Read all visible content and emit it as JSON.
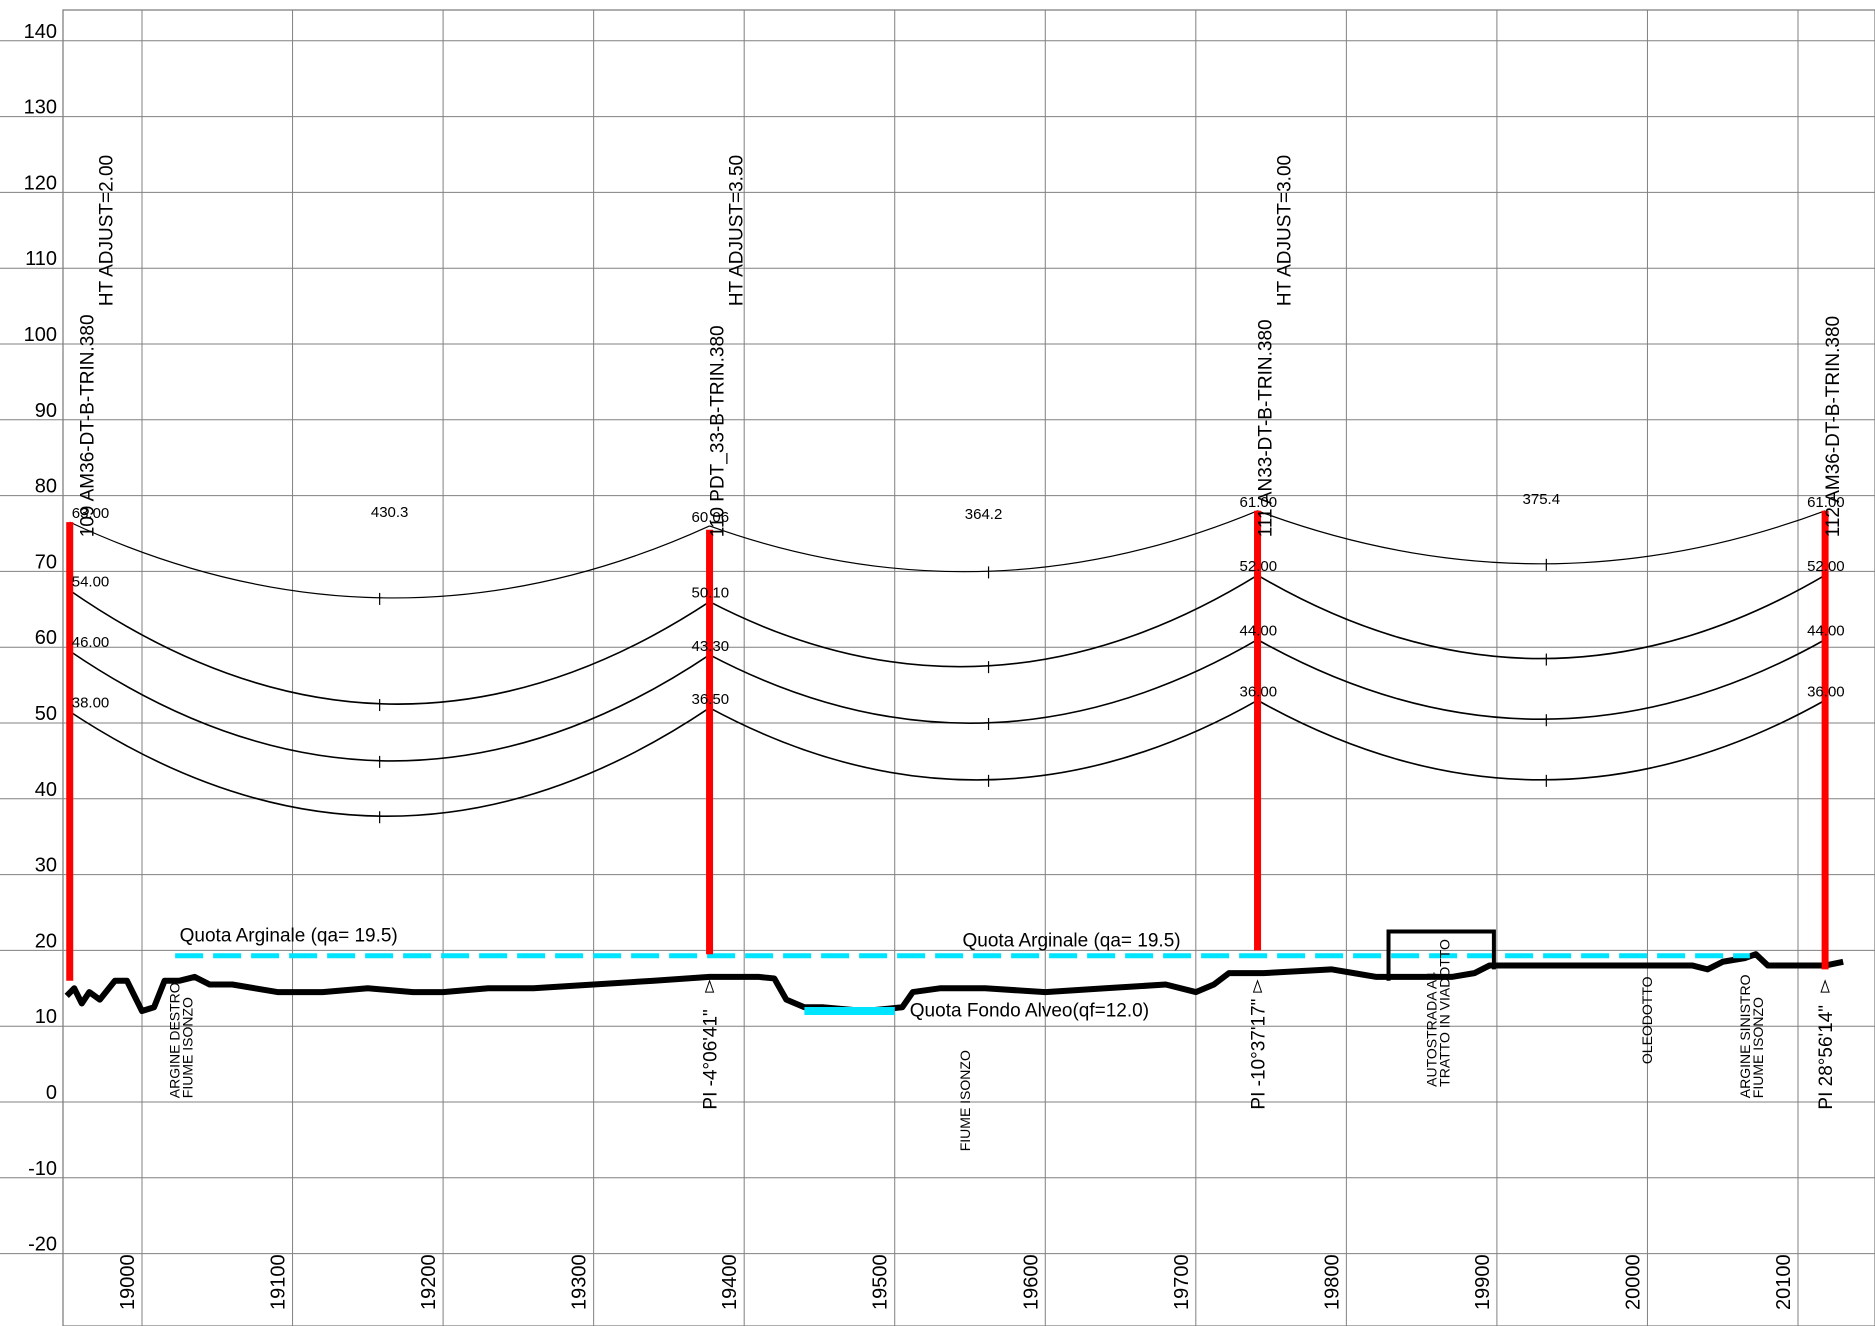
{
  "chart_data": {
    "type": "line",
    "x_ticks": [
      "19000",
      "19100",
      "19200",
      "19300",
      "19400",
      "19500",
      "19600",
      "19700",
      "19800",
      "19900",
      "20000",
      "20100"
    ],
    "y_ticks": [
      "140",
      "130",
      "120",
      "110",
      "100",
      "90",
      "80",
      "70",
      "60",
      "50",
      "40",
      "30",
      "20",
      "10",
      "0",
      "-10",
      "-20"
    ],
    "xlim": [
      18950,
      20130
    ],
    "ylim": [
      -25,
      144
    ],
    "grid": true,
    "towers": [
      {
        "label": "109 AM36-DT-B-TRIN.380",
        "adjust": "HT ADJUST=2.00",
        "x": 18952,
        "top": 76.5,
        "bottom": 16,
        "attach": [
          "63.00",
          "54.00",
          "46.00",
          "38.00"
        ],
        "pi": ""
      },
      {
        "label": "110 PDT_33-B-TRIN.380",
        "adjust": "HT ADJUST=3.50",
        "x": 19377,
        "top": 75.5,
        "bottom": 19.5,
        "attach": [
          "60.06",
          "50.10",
          "43.30",
          "36.50"
        ],
        "pi": "PI -4°06'41\""
      },
      {
        "label": "111 AN33-DT-B-TRIN.380",
        "adjust": "HT ADJUST=3.00",
        "x": 19741,
        "top": 78,
        "bottom": 20,
        "attach": [
          "61.00",
          "52.00",
          "44.00",
          "36.00"
        ],
        "pi": "PI -10°37'17\""
      },
      {
        "label": "112 AM36-DT-B-TRIN.380",
        "adjust": "",
        "x": 20118,
        "top": 78,
        "bottom": 17.5,
        "attach": [
          "61.00",
          "52.00",
          "44.00",
          "36.00"
        ],
        "pi": "PI 28°56'14\""
      }
    ],
    "spans": [
      {
        "length": "430.3",
        "wires": [
          [
            76.5,
            66.5,
            76.0
          ],
          [
            67.5,
            52.5,
            66.0
          ],
          [
            59.5,
            45.0,
            59.0
          ],
          [
            51.5,
            37.7,
            52.0
          ]
        ]
      },
      {
        "length": "364.2",
        "wires": [
          [
            76.0,
            70.0,
            78.0
          ],
          [
            66.0,
            57.5,
            69.5
          ],
          [
            59.0,
            50.0,
            61.0
          ],
          [
            52.0,
            42.5,
            53.0
          ]
        ]
      },
      {
        "length": "375.4",
        "wires": [
          [
            78.0,
            71.0,
            78.0
          ],
          [
            69.5,
            58.5,
            69.5
          ],
          [
            61.0,
            50.5,
            61.0
          ],
          [
            53.0,
            42.5,
            53.0
          ]
        ]
      }
    ],
    "ground": [
      [
        18950,
        14
      ],
      [
        18955,
        15
      ],
      [
        18960,
        13
      ],
      [
        18965,
        14.5
      ],
      [
        18972,
        13.5
      ],
      [
        18982,
        16
      ],
      [
        18990,
        16
      ],
      [
        19000,
        12
      ],
      [
        19008,
        12.5
      ],
      [
        19015,
        16
      ],
      [
        19025,
        16
      ],
      [
        19035,
        16.5
      ],
      [
        19045,
        15.5
      ],
      [
        19060,
        15.5
      ],
      [
        19075,
        15
      ],
      [
        19090,
        14.5
      ],
      [
        19120,
        14.5
      ],
      [
        19150,
        15
      ],
      [
        19180,
        14.5
      ],
      [
        19200,
        14.5
      ],
      [
        19230,
        15
      ],
      [
        19260,
        15
      ],
      [
        19300,
        15.5
      ],
      [
        19340,
        16
      ],
      [
        19377,
        16.5
      ],
      [
        19410,
        16.5
      ],
      [
        19420,
        16.3
      ],
      [
        19428,
        13.5
      ],
      [
        19440,
        12.5
      ],
      [
        19452,
        12.5
      ],
      [
        19480,
        12
      ],
      [
        19505,
        12.5
      ],
      [
        19512,
        14.5
      ],
      [
        19530,
        15
      ],
      [
        19560,
        15
      ],
      [
        19600,
        14.5
      ],
      [
        19640,
        15
      ],
      [
        19680,
        15.5
      ],
      [
        19700,
        14.5
      ],
      [
        19712,
        15.5
      ],
      [
        19722,
        17
      ],
      [
        19745,
        17
      ],
      [
        19790,
        17.5
      ],
      [
        19805,
        17
      ],
      [
        19820,
        16.5
      ],
      [
        19850,
        16.5
      ],
      [
        19870,
        16.5
      ],
      [
        19885,
        17
      ],
      [
        19895,
        18
      ],
      [
        19940,
        18
      ],
      [
        20000,
        18
      ],
      [
        20030,
        18
      ],
      [
        20040,
        17.5
      ],
      [
        20050,
        18.5
      ],
      [
        20065,
        19
      ],
      [
        20072,
        19.5
      ],
      [
        20080,
        18
      ],
      [
        20100,
        18
      ],
      [
        20118,
        18
      ],
      [
        20130,
        18.5
      ]
    ],
    "features": [
      "ARGINE DESTRO\nFIUME ISONZO",
      "FIUME ISONZO",
      "AUTOSTRADA A4\nTRATTO IN VIADOTTO",
      "OLEODOTTO",
      "ARGINE SINISTRO\nFIUME ISONZO"
    ],
    "annotations": {
      "quota_arginale": "Quota Arginale (qa= 19.5)",
      "quota_fondo": "Quota Fondo Alveo(qf=12.0)"
    },
    "colors": {
      "tower": "#ff0000",
      "water": "#00e5ff",
      "ground": "#000000",
      "grid": "#808080"
    }
  }
}
